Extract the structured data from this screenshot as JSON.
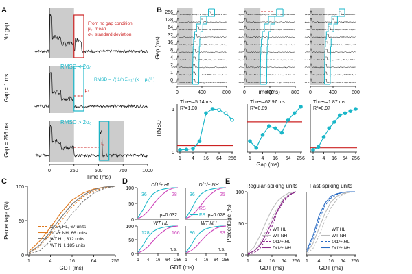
{
  "colors": {
    "cyan": "#19b6c8",
    "red": "#cc2222",
    "orange": "#e07a1f",
    "purple": "#8a2a8a",
    "magenta": "#cc3fb8",
    "blue": "#2b6cc4",
    "gray": "#bbbbbb",
    "dark": "#111111",
    "shade": "#cccccc"
  },
  "panels": {
    "A": "A",
    "B": "B",
    "C": "C",
    "D": "D",
    "E": "E"
  },
  "chart_data": [
    {
      "id": "A",
      "type": "line",
      "rows": [
        {
          "ylabel": "No gap",
          "annotation": [
            "From no gap condition",
            "μ₀: mean",
            "σ₀: standard deviation"
          ]
        },
        {
          "ylabel": "Gap = 1 ms",
          "condition": "RMSD < 2σ₀",
          "formula": "RMSD = √( 1/n Σᵢ₌₁ⁿ (xᵢ − μ₀)² )",
          "mu": "μ₀"
        },
        {
          "ylabel": "Gap = 256 ms",
          "condition": "RMSD > 2σ₀",
          "mu": "μ₀"
        }
      ],
      "xticks": [
        "0",
        "250",
        "500",
        "750",
        "1000"
      ],
      "xlabel": "Time (ms)"
    },
    {
      "id": "B-raster",
      "type": "line",
      "ylabels": [
        "256",
        "128",
        "64",
        "32",
        "16",
        "8",
        "4",
        "2",
        "1",
        "0"
      ],
      "ylabel": "Gap (ms)",
      "xticks": [
        "0",
        "400",
        "800"
      ],
      "xlabel": "Time (ms)"
    },
    {
      "id": "B-fits",
      "type": "scatter",
      "ylabel": "RMSD",
      "xlabel": "Gap (ms)",
      "xticks": [
        "1",
        "4",
        "16",
        "64",
        "256"
      ],
      "yticks": [
        "0",
        "1"
      ],
      "subplots": [
        {
          "thres": "Thres=5.14 ms",
          "r2": "R²=1.00",
          "x": [
            1,
            2,
            4,
            8,
            16,
            32,
            64,
            128,
            256
          ],
          "y": [
            0.05,
            0.06,
            0.08,
            0.25,
            0.9,
            1.0,
            0.98,
            0.9,
            0.75
          ],
          "threshold_y": 0.15,
          "filled": [
            true,
            true,
            true,
            true,
            true,
            true,
            false,
            false,
            false
          ]
        },
        {
          "thres": "Thres=62.97 ms",
          "r2": "R²=0.89",
          "x": [
            1,
            2,
            4,
            8,
            16,
            32,
            64,
            128,
            256
          ],
          "y": [
            0.25,
            0.1,
            0.4,
            0.6,
            0.55,
            0.45,
            0.75,
            0.9,
            1.05
          ],
          "threshold_y": 0.7,
          "filled": [
            true,
            true,
            true,
            true,
            true,
            true,
            true,
            true,
            true
          ]
        },
        {
          "thres": "Thres=1.87 ms",
          "r2": "R²=0.97",
          "x": [
            1,
            2,
            4,
            8,
            16,
            32,
            64,
            128,
            256
          ],
          "y": [
            0.05,
            0.12,
            0.35,
            0.55,
            0.7,
            0.85,
            0.9,
            0.95,
            1.0
          ],
          "threshold_y": 0.1,
          "filled": [
            true,
            true,
            true,
            true,
            true,
            true,
            true,
            true,
            true
          ]
        }
      ]
    },
    {
      "id": "C",
      "type": "line",
      "ylabel": "Percentage (%)",
      "xlabel": "GDT (ms)",
      "xticks": [
        "1",
        "4",
        "16",
        "64",
        "256"
      ],
      "yticks": [
        "0",
        "50",
        "100"
      ],
      "series": [
        {
          "name": "Df1/+ HL, 67 units",
          "style": "dash",
          "color": "#e07a1f",
          "x": [
            1,
            2,
            4,
            8,
            16,
            32,
            64,
            128,
            256
          ],
          "y": [
            2,
            12,
            30,
            50,
            70,
            85,
            93,
            98,
            100
          ]
        },
        {
          "name": "Df1/+ NH, 66 units",
          "style": "solid",
          "color": "#e07a1f",
          "x": [
            1,
            2,
            4,
            8,
            16,
            32,
            64,
            128,
            256
          ],
          "y": [
            5,
            20,
            40,
            62,
            80,
            90,
            96,
            99,
            100
          ]
        },
        {
          "name": "WT HL, 312 units",
          "style": "dash",
          "color": "#777777",
          "x": [
            1,
            2,
            4,
            8,
            16,
            32,
            64,
            128,
            256
          ],
          "y": [
            1,
            6,
            20,
            40,
            60,
            78,
            90,
            97,
            100
          ]
        },
        {
          "name": "WT NH, 185 units",
          "style": "solid",
          "color": "#777777",
          "x": [
            1,
            2,
            4,
            8,
            16,
            32,
            64,
            128,
            256
          ],
          "y": [
            3,
            14,
            34,
            55,
            74,
            87,
            95,
            99,
            100
          ]
        }
      ]
    },
    {
      "id": "D",
      "type": "line",
      "xlabel": "GDT (ms)",
      "xticks": [
        "1",
        "4",
        "16",
        "64",
        "256"
      ],
      "yticks": [
        "0",
        "50",
        "100"
      ],
      "legend": {
        "rs": "RS",
        "fs": "FS"
      },
      "subplots": [
        {
          "title": "Df1/+ HL",
          "n_fs": "36",
          "n_rs": "28",
          "p": "p=0.032"
        },
        {
          "title": "Df1/+ NH",
          "n_fs": "36",
          "n_rs": "25",
          "p": "p=0.028"
        },
        {
          "title": "WT HL",
          "n_fs": "128",
          "n_rs": "166",
          "p": "n.s."
        },
        {
          "title": "WT NH",
          "n_fs": "86",
          "n_rs": "93",
          "p": "n.s."
        }
      ],
      "fs_curve": {
        "x": [
          1,
          2,
          4,
          8,
          16,
          32,
          64,
          128,
          256
        ],
        "y": [
          5,
          30,
          60,
          80,
          90,
          95,
          98,
          100,
          100
        ]
      },
      "rs_curve": {
        "x": [
          1,
          2,
          4,
          8,
          16,
          32,
          64,
          128,
          256
        ],
        "y": [
          2,
          10,
          25,
          45,
          65,
          80,
          92,
          98,
          100
        ]
      }
    },
    {
      "id": "E",
      "type": "line",
      "ylabel": "Percentage (%)",
      "xlabel": "GDT (ms)",
      "xticks": [
        "1",
        "4",
        "16",
        "64",
        "256"
      ],
      "yticks": [
        "0",
        "50",
        "100"
      ],
      "subplots": [
        {
          "title": "Regular-spiking units",
          "legend": [
            "WT HL",
            "WT NH",
            "Df1/+ HL",
            "Df1/+ NH"
          ],
          "colors": [
            "#bbbbbb",
            "#bbbbbb",
            "#8a2a8a",
            "#8a2a8a"
          ],
          "dash": [
            true,
            false,
            true,
            false
          ],
          "series": [
            {
              "x": [
                1,
                2,
                4,
                8,
                16,
                32,
                64,
                128,
                256
              ],
              "y": [
                1,
                5,
                18,
                38,
                58,
                76,
                90,
                97,
                100
              ]
            },
            {
              "x": [
                1,
                2,
                4,
                8,
                16,
                32,
                64,
                128,
                256
              ],
              "y": [
                3,
                12,
                30,
                52,
                72,
                86,
                94,
                99,
                100
              ]
            },
            {
              "x": [
                1,
                2,
                4,
                8,
                16,
                32,
                64,
                128,
                256
              ],
              "y": [
                1,
                3,
                10,
                25,
                45,
                70,
                85,
                95,
                100
              ]
            },
            {
              "x": [
                1,
                2,
                4,
                8,
                16,
                32,
                64,
                128,
                256
              ],
              "y": [
                2,
                6,
                15,
                32,
                52,
                72,
                88,
                96,
                100
              ]
            }
          ]
        },
        {
          "title": "Fast-spiking units",
          "legend": [
            "WT HL",
            "WT NH",
            "Df1/+ HL",
            "Df1/+ NH"
          ],
          "colors": [
            "#bbbbbb",
            "#bbbbbb",
            "#2b6cc4",
            "#2b6cc4"
          ],
          "dash": [
            true,
            false,
            true,
            false
          ],
          "series": [
            {
              "x": [
                1,
                2,
                4,
                8,
                16,
                32,
                64,
                128,
                256
              ],
              "y": [
                2,
                10,
                30,
                55,
                75,
                88,
                96,
                99,
                100
              ]
            },
            {
              "x": [
                1,
                2,
                4,
                8,
                16,
                32,
                64,
                128,
                256
              ],
              "y": [
                4,
                18,
                42,
                66,
                84,
                93,
                97,
                100,
                100
              ]
            },
            {
              "x": [
                1,
                2,
                4,
                8,
                16,
                32,
                64,
                128,
                256
              ],
              "y": [
                5,
                25,
                55,
                78,
                90,
                96,
                99,
                100,
                100
              ]
            },
            {
              "x": [
                1,
                2,
                4,
                8,
                16,
                32,
                64,
                128,
                256
              ],
              "y": [
                8,
                30,
                62,
                82,
                93,
                97,
                99,
                100,
                100
              ]
            }
          ]
        }
      ]
    }
  ]
}
